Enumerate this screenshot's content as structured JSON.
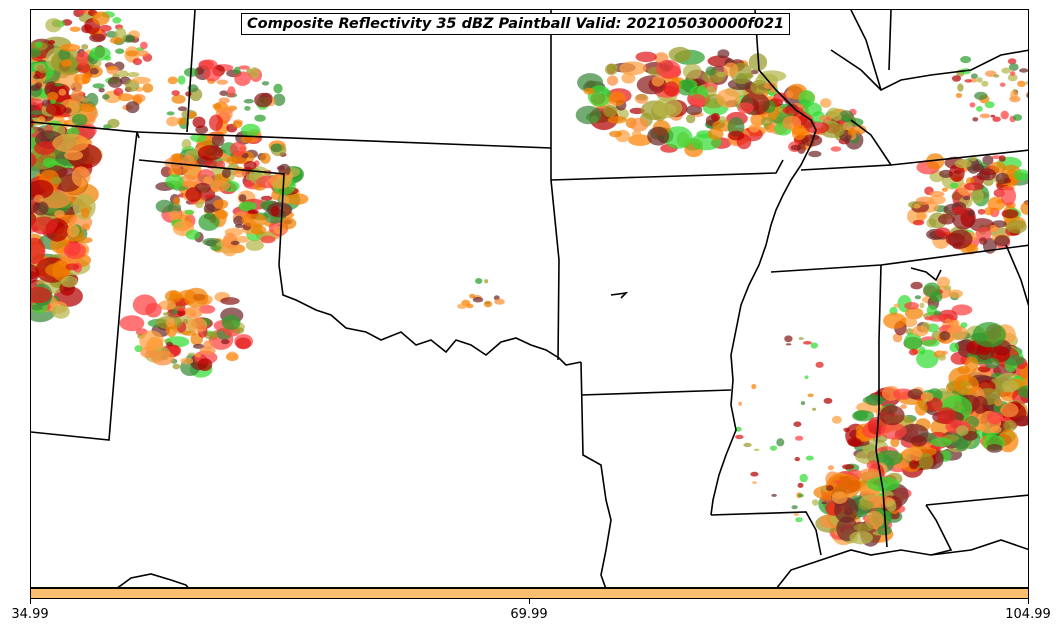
{
  "title": "Composite Reflectivity 35 dBZ Paintball Valid: 202105030000f021",
  "colors": {
    "colorbar": "#fdbf6f",
    "borders": "#000000",
    "paintball_palette": [
      "#f08000",
      "#ff7f00",
      "#ff4040",
      "#e31a1c",
      "#b30000",
      "#8b1a1a",
      "#3a8a3a",
      "#2ca02c",
      "#33dd33",
      "#9a9a2a",
      "#b5b54a",
      "#ffa040",
      "#fd8d3c",
      "#6e2a2a"
    ]
  },
  "colorbar": {
    "ticks": [
      "34.99",
      "69.99",
      "104.99"
    ],
    "values": [
      34.99,
      69.99,
      104.99
    ]
  }
}
